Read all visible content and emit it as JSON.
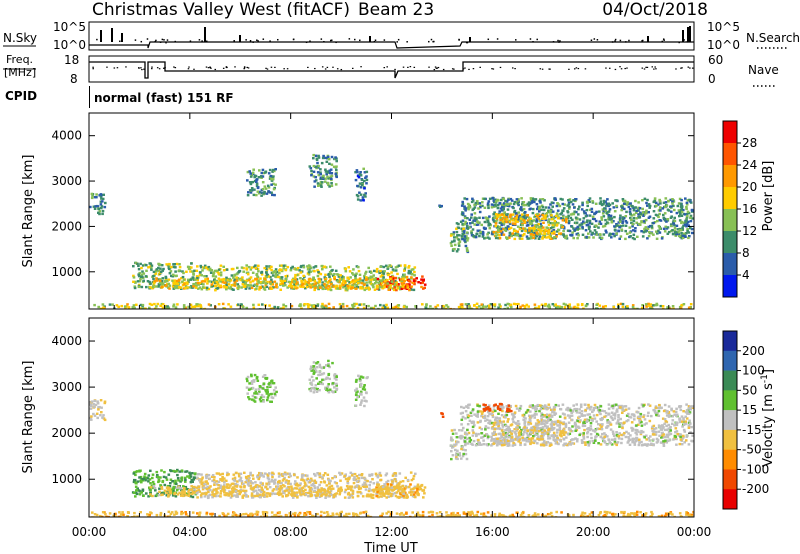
{
  "header": {
    "title": "Christmas Valley West (fitACF)",
    "beam": "Beam 23",
    "date": "04/Oct/2018"
  },
  "panels": {
    "nsky_label": "N.Sky",
    "nsearch_label": "N.Search",
    "freq_label_1": "Freq.",
    "freq_label_2": "[MHz]",
    "nave_label": "Nave",
    "cpid_label": "CPID",
    "cpid_text": "normal (fast) 151 RF",
    "nsky_ticks": [
      "10^5",
      "10^0"
    ],
    "nsearch_ticks": [
      "10^5",
      "10^0"
    ],
    "freq_ticks": [
      "18",
      "8"
    ],
    "nave_ticks": [
      "60",
      "0"
    ]
  },
  "chart_data": {
    "type": "heatmap",
    "xlabel": "Time UT",
    "x_ticks": [
      "00:00",
      "04:00",
      "08:00",
      "12:00",
      "16:00",
      "20:00",
      "00:00"
    ],
    "xlim": [
      0,
      24
    ],
    "ylabel": "Slant Range [km]",
    "ylim": [
      180,
      4500
    ],
    "y_ticks": [
      "1000",
      "2000",
      "3000",
      "4000"
    ],
    "y_tick_values": [
      1000,
      2000,
      3000,
      4000
    ],
    "power": {
      "label": "Power [dB]",
      "scale_ticks": [
        "28",
        "24",
        "20",
        "16",
        "12",
        "8",
        "4"
      ],
      "scale_colors": [
        "#ee0000",
        "#ff5500",
        "#ff9900",
        "#ffcc00",
        "#88c055",
        "#3c8c6a",
        "#2a5caa",
        "#0018ee"
      ]
    },
    "velocity": {
      "label": "Velocity [m s",
      "label_sup": "-1",
      "label_end": "]",
      "scale_ticks": [
        "200",
        "100",
        "50",
        "15",
        "-15",
        "-50",
        "-100",
        "-200"
      ],
      "scale_colors": [
        "#1a2a9a",
        "#2f66b0",
        "#3a8a55",
        "#60c030",
        "#c0c0c0",
        "#f0c040",
        "#ff8c00",
        "#f04800",
        "#e80000"
      ]
    },
    "regions": [
      {
        "t0": 1.7,
        "t1": 4.2,
        "r0": 640,
        "r1": 1230,
        "power": 13,
        "velocity": 50
      },
      {
        "t0": 4.2,
        "t1": 12.9,
        "r0": 620,
        "r1": 1170,
        "power": 14,
        "velocity": -15
      },
      {
        "t0": 11.3,
        "t1": 13.3,
        "r0": 620,
        "r1": 920,
        "power": 27,
        "velocity": -40
      },
      {
        "t0": 2.3,
        "t1": 12.6,
        "r0": 650,
        "r1": 880,
        "power": 18,
        "velocity": -30
      },
      {
        "t0": 0.0,
        "t1": 24.0,
        "r0": 185,
        "r1": 320,
        "power": 16,
        "velocity": -40
      },
      {
        "t0": 14.7,
        "t1": 23.9,
        "r0": 1750,
        "r1": 2650,
        "power": 10,
        "velocity": 0
      },
      {
        "t0": 16.0,
        "t1": 18.9,
        "r0": 1750,
        "r1": 2300,
        "power": 18,
        "velocity": -10
      },
      {
        "t0": 15.6,
        "t1": 16.8,
        "r0": 2480,
        "r1": 2660,
        "power": 10,
        "velocity": -170
      },
      {
        "t0": 14.3,
        "t1": 15.0,
        "r0": 1460,
        "r1": 2100,
        "power": 12,
        "velocity": 0
      },
      {
        "t0": 0.0,
        "t1": 0.6,
        "r0": 2300,
        "r1": 2750,
        "power": 9,
        "velocity": -10
      },
      {
        "t0": 6.2,
        "t1": 7.4,
        "r0": 2700,
        "r1": 3300,
        "power": 10,
        "velocity": 20
      },
      {
        "t0": 8.7,
        "t1": 9.8,
        "r0": 2900,
        "r1": 3600,
        "power": 10,
        "velocity": 10
      },
      {
        "t0": 10.5,
        "t1": 11.0,
        "r0": 2600,
        "r1": 3300,
        "power": 8,
        "velocity": 10
      },
      {
        "t0": 13.8,
        "t1": 14.0,
        "r0": 2380,
        "r1": 2500,
        "power": 6,
        "velocity": -170
      }
    ]
  }
}
